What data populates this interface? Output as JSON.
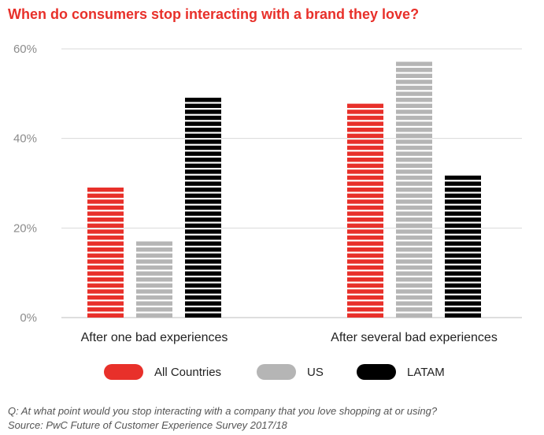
{
  "title": "When do consumers stop interacting with a brand they love?",
  "chart_data": {
    "type": "bar",
    "categories": [
      "After one bad experiences",
      "After several bad experiences"
    ],
    "series": [
      {
        "name": "All Countries",
        "values": [
          30,
          48
        ],
        "color": "#e8302a"
      },
      {
        "name": "US",
        "values": [
          18,
          58
        ],
        "color": "#b5b5b5"
      },
      {
        "name": "LATAM",
        "values": [
          50,
          32
        ],
        "color": "#000000"
      }
    ],
    "ylim": [
      0,
      60
    ],
    "yticks": [
      0,
      20,
      40,
      60
    ],
    "ytick_labels": [
      "0%",
      "20%",
      "40%",
      "60%"
    ],
    "grid": true,
    "legend_position": "bottom",
    "bar_style": "horizontally striped"
  },
  "footnote": {
    "question": "Q: At what point would you stop interacting with a company that you love shopping at or using?",
    "source": "Source: PwC Future of Customer Experience Survey 2017/18"
  }
}
